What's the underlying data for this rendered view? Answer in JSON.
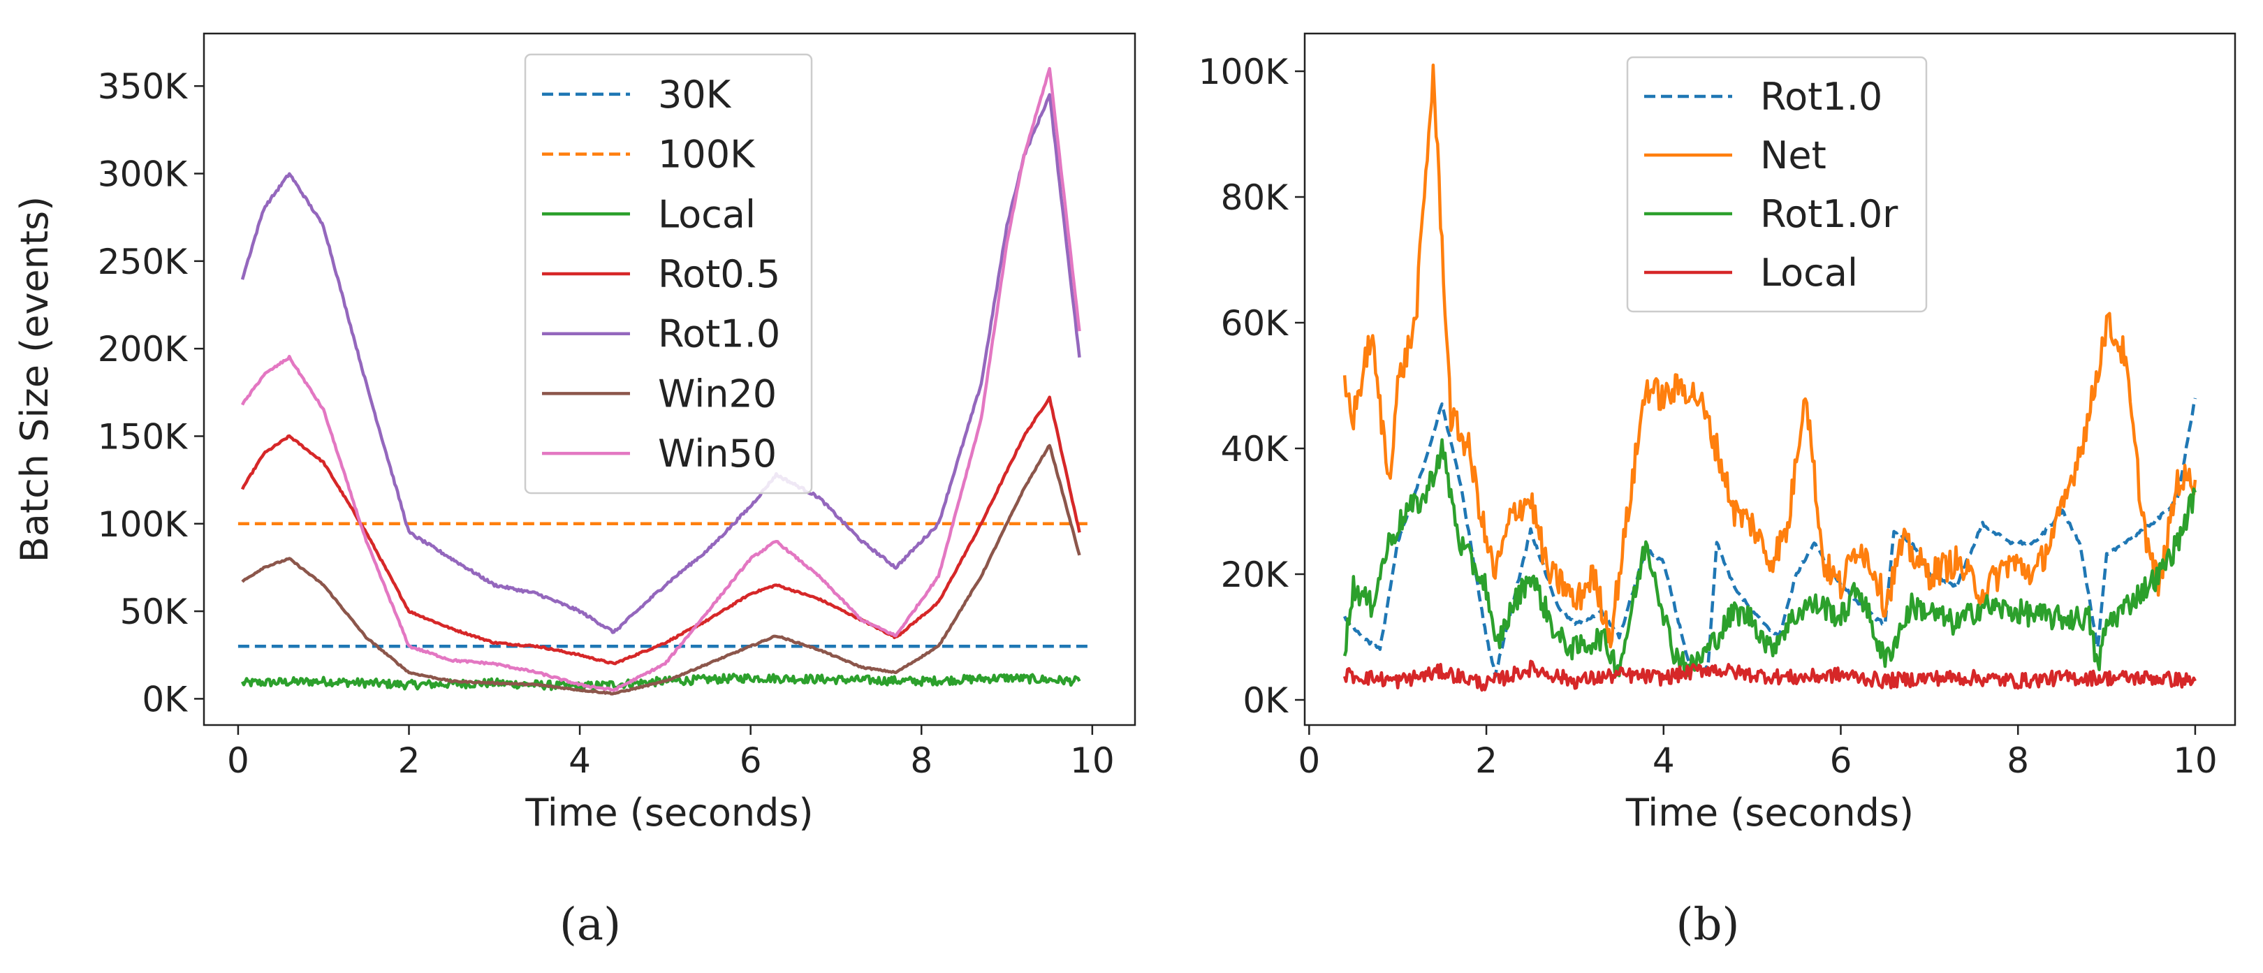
{
  "colors": {
    "blue": "#1f77b4",
    "orange": "#ff7f0e",
    "green": "#2ca02c",
    "red": "#d62728",
    "purple": "#9467bd",
    "brown": "#8c564b",
    "pink": "#e377c2"
  },
  "captions": [
    "(a)",
    "(b)"
  ],
  "chart_data": [
    {
      "type": "line",
      "panel": "a",
      "xlabel": "Time (seconds)",
      "ylabel": "Batch Size (events)",
      "xlim": [
        -0.4,
        10.5
      ],
      "ylim": [
        -15000,
        380000
      ],
      "xticks": [
        0,
        2,
        4,
        6,
        8,
        10
      ],
      "xtick_labels": [
        "0",
        "2",
        "4",
        "6",
        "8",
        "10"
      ],
      "yticks": [
        0,
        50000,
        100000,
        150000,
        200000,
        250000,
        300000,
        350000
      ],
      "ytick_labels": [
        "0K",
        "50K",
        "100K",
        "150K",
        "200K",
        "250K",
        "300K",
        "350K"
      ],
      "legend_position": "top-center",
      "series": [
        {
          "name": "30K",
          "style": "dashed",
          "color": "#1f77b4",
          "noise": 0,
          "x": [
            0,
            10
          ],
          "y": [
            30000,
            30000
          ]
        },
        {
          "name": "100K",
          "style": "dashed",
          "color": "#ff7f0e",
          "noise": 0,
          "x": [
            0,
            10
          ],
          "y": [
            100000,
            100000
          ]
        },
        {
          "name": "Local",
          "style": "solid",
          "color": "#2ca02c",
          "noise": 2500,
          "x": [
            0.05,
            1,
            2,
            3,
            4,
            5,
            6,
            7,
            8,
            9,
            9.85
          ],
          "y": [
            9000,
            10000,
            8000,
            9000,
            7000,
            10000,
            12000,
            11000,
            10000,
            12000,
            10000
          ]
        },
        {
          "name": "Rot0.5",
          "style": "solid",
          "color": "#d62728",
          "noise": 500,
          "x": [
            0.05,
            0.3,
            0.6,
            1.0,
            1.5,
            2.0,
            2.5,
            3.0,
            3.5,
            4.0,
            4.4,
            5.0,
            5.5,
            6.0,
            6.3,
            6.8,
            7.3,
            7.7,
            8.2,
            8.7,
            9.2,
            9.5,
            9.85
          ],
          "y": [
            120000,
            140000,
            150000,
            135000,
            95000,
            50000,
            40000,
            32000,
            30000,
            25000,
            20000,
            32000,
            45000,
            60000,
            65000,
            57000,
            45000,
            35000,
            55000,
            100000,
            150000,
            172000,
            95000
          ]
        },
        {
          "name": "Rot1.0",
          "style": "solid",
          "color": "#9467bd",
          "noise": 800,
          "x": [
            0.05,
            0.3,
            0.6,
            1.0,
            1.5,
            2.0,
            2.5,
            3.0,
            3.5,
            4.0,
            4.4,
            5.0,
            5.5,
            6.0,
            6.3,
            6.8,
            7.3,
            7.7,
            8.2,
            8.7,
            9.0,
            9.2,
            9.5,
            9.85
          ],
          "y": [
            240000,
            280000,
            300000,
            270000,
            180000,
            95000,
            80000,
            65000,
            60000,
            50000,
            38000,
            65000,
            85000,
            110000,
            128000,
            115000,
            90000,
            75000,
            100000,
            180000,
            270000,
            310000,
            345000,
            195000
          ]
        },
        {
          "name": "Win20",
          "style": "solid",
          "color": "#8c564b",
          "noise": 400,
          "x": [
            0.05,
            0.3,
            0.6,
            1.0,
            1.5,
            2.0,
            2.5,
            3.0,
            3.5,
            4.0,
            4.4,
            5.0,
            5.5,
            6.0,
            6.3,
            6.8,
            7.3,
            7.7,
            8.2,
            8.7,
            9.2,
            9.5,
            9.85
          ],
          "y": [
            67000,
            75000,
            80000,
            65000,
            35000,
            15000,
            10000,
            9000,
            8000,
            5000,
            3000,
            10000,
            20000,
            30000,
            36000,
            28000,
            18000,
            15000,
            30000,
            70000,
            120000,
            145000,
            82000
          ]
        },
        {
          "name": "Win50",
          "style": "solid",
          "color": "#e377c2",
          "noise": 600,
          "x": [
            0.05,
            0.3,
            0.6,
            1.0,
            1.5,
            2.0,
            2.5,
            3.0,
            3.5,
            4.0,
            4.4,
            5.0,
            5.5,
            6.0,
            6.3,
            6.8,
            7.3,
            7.7,
            8.2,
            8.7,
            9.0,
            9.2,
            9.5,
            9.85
          ],
          "y": [
            168000,
            185000,
            195000,
            165000,
            90000,
            30000,
            22000,
            20000,
            15000,
            8000,
            5000,
            20000,
            50000,
            80000,
            90000,
            70000,
            45000,
            36000,
            70000,
            160000,
            260000,
            310000,
            360000,
            210000
          ]
        }
      ]
    },
    {
      "type": "line",
      "panel": "b",
      "xlabel": "Time (seconds)",
      "ylabel": "",
      "xlim": [
        -0.05,
        10.45
      ],
      "ylim": [
        -4000,
        106000
      ],
      "xticks": [
        0,
        2,
        4,
        6,
        8,
        10
      ],
      "xtick_labels": [
        "0",
        "2",
        "4",
        "6",
        "8",
        "10"
      ],
      "yticks": [
        0,
        20000,
        40000,
        60000,
        80000,
        100000
      ],
      "ytick_labels": [
        "0K",
        "20K",
        "40K",
        "60K",
        "80K",
        "100K"
      ],
      "legend_position": "top-center",
      "series": [
        {
          "name": "Rot1.0",
          "style": "dashed",
          "color": "#1f77b4",
          "noise": 300,
          "x": [
            0.4,
            0.6,
            0.8,
            1.0,
            1.2,
            1.5,
            1.7,
            2.0,
            2.1,
            2.5,
            2.8,
            3.0,
            3.3,
            3.5,
            3.8,
            4.0,
            4.3,
            4.5,
            4.6,
            4.8,
            5.0,
            5.3,
            5.5,
            5.7,
            5.9,
            6.1,
            6.3,
            6.5,
            6.6,
            6.8,
            7.0,
            7.3,
            7.6,
            7.9,
            8.2,
            8.5,
            8.7,
            8.9,
            9.0,
            9.3,
            9.6,
            9.8,
            10.0
          ],
          "y": [
            13000,
            10000,
            8000,
            25000,
            33000,
            47000,
            35000,
            10000,
            4000,
            27000,
            15000,
            12000,
            14000,
            10000,
            24000,
            22000,
            5000,
            5000,
            25000,
            18000,
            14000,
            10000,
            20000,
            25000,
            20000,
            17000,
            14000,
            12000,
            27000,
            25000,
            20000,
            18000,
            28000,
            25000,
            25000,
            30000,
            25000,
            8000,
            23000,
            26000,
            29000,
            32000,
            48000
          ]
        },
        {
          "name": "Net",
          "style": "solid",
          "color": "#ff7f0e",
          "noise": 2500,
          "x": [
            0.4,
            0.5,
            0.7,
            0.9,
            1.0,
            1.2,
            1.4,
            1.6,
            1.8,
            2.0,
            2.1,
            2.3,
            2.5,
            2.7,
            2.9,
            3.0,
            3.2,
            3.4,
            3.6,
            3.8,
            4.0,
            4.2,
            4.4,
            4.6,
            4.8,
            5.0,
            5.2,
            5.4,
            5.6,
            5.8,
            6.0,
            6.2,
            6.4,
            6.5,
            6.7,
            7.0,
            7.3,
            7.6,
            7.9,
            8.2,
            8.5,
            8.8,
            9.0,
            9.2,
            9.4,
            9.5,
            9.6,
            9.8,
            10.0
          ],
          "y": [
            50000,
            45000,
            58000,
            35000,
            50000,
            60000,
            100000,
            45000,
            40000,
            25000,
            20000,
            30000,
            32000,
            20000,
            18000,
            15000,
            20000,
            10000,
            30000,
            50000,
            48000,
            50000,
            48000,
            40000,
            30000,
            28000,
            22000,
            27000,
            50000,
            22000,
            18000,
            25000,
            20000,
            15000,
            25000,
            20000,
            22000,
            17000,
            22000,
            20000,
            30000,
            45000,
            60000,
            55000,
            30000,
            22000,
            18000,
            35000,
            35000
          ]
        },
        {
          "name": "Rot1.0r",
          "style": "solid",
          "color": "#2ca02c",
          "noise": 2000,
          "x": [
            0.4,
            0.5,
            0.7,
            0.9,
            1.1,
            1.3,
            1.5,
            1.7,
            2.0,
            2.1,
            2.3,
            2.5,
            2.8,
            3.0,
            3.3,
            3.5,
            3.8,
            3.9,
            4.1,
            4.3,
            4.5,
            4.8,
            5.0,
            5.2,
            5.4,
            5.6,
            5.8,
            6.0,
            6.2,
            6.4,
            6.5,
            6.8,
            7.0,
            7.3,
            7.6,
            8.0,
            8.4,
            8.8,
            8.9,
            9.0,
            9.3,
            9.6,
            9.8,
            10.0
          ],
          "y": [
            8000,
            18000,
            15000,
            25000,
            30000,
            32000,
            40000,
            25000,
            18000,
            8000,
            15000,
            20000,
            10000,
            8000,
            10000,
            5000,
            25000,
            20000,
            8000,
            5000,
            8000,
            14000,
            13000,
            8000,
            12000,
            15000,
            15000,
            13000,
            18000,
            10000,
            6000,
            15000,
            14000,
            12000,
            15000,
            14000,
            13000,
            13000,
            5000,
            12000,
            16000,
            20000,
            25000,
            33000
          ]
        },
        {
          "name": "Local",
          "style": "solid",
          "color": "#d62728",
          "noise": 1200,
          "x": [
            0.4,
            1.0,
            1.5,
            2.0,
            2.5,
            3.0,
            3.5,
            4.0,
            4.5,
            5.0,
            5.5,
            6.0,
            6.5,
            7.0,
            7.5,
            8.0,
            8.5,
            9.0,
            9.5,
            10.0
          ],
          "y": [
            4000,
            3000,
            4500,
            2500,
            5000,
            3000,
            4000,
            3500,
            5000,
            4000,
            3500,
            4000,
            3000,
            3500,
            3500,
            3000,
            3500,
            3500,
            3500,
            3000
          ]
        }
      ]
    }
  ]
}
